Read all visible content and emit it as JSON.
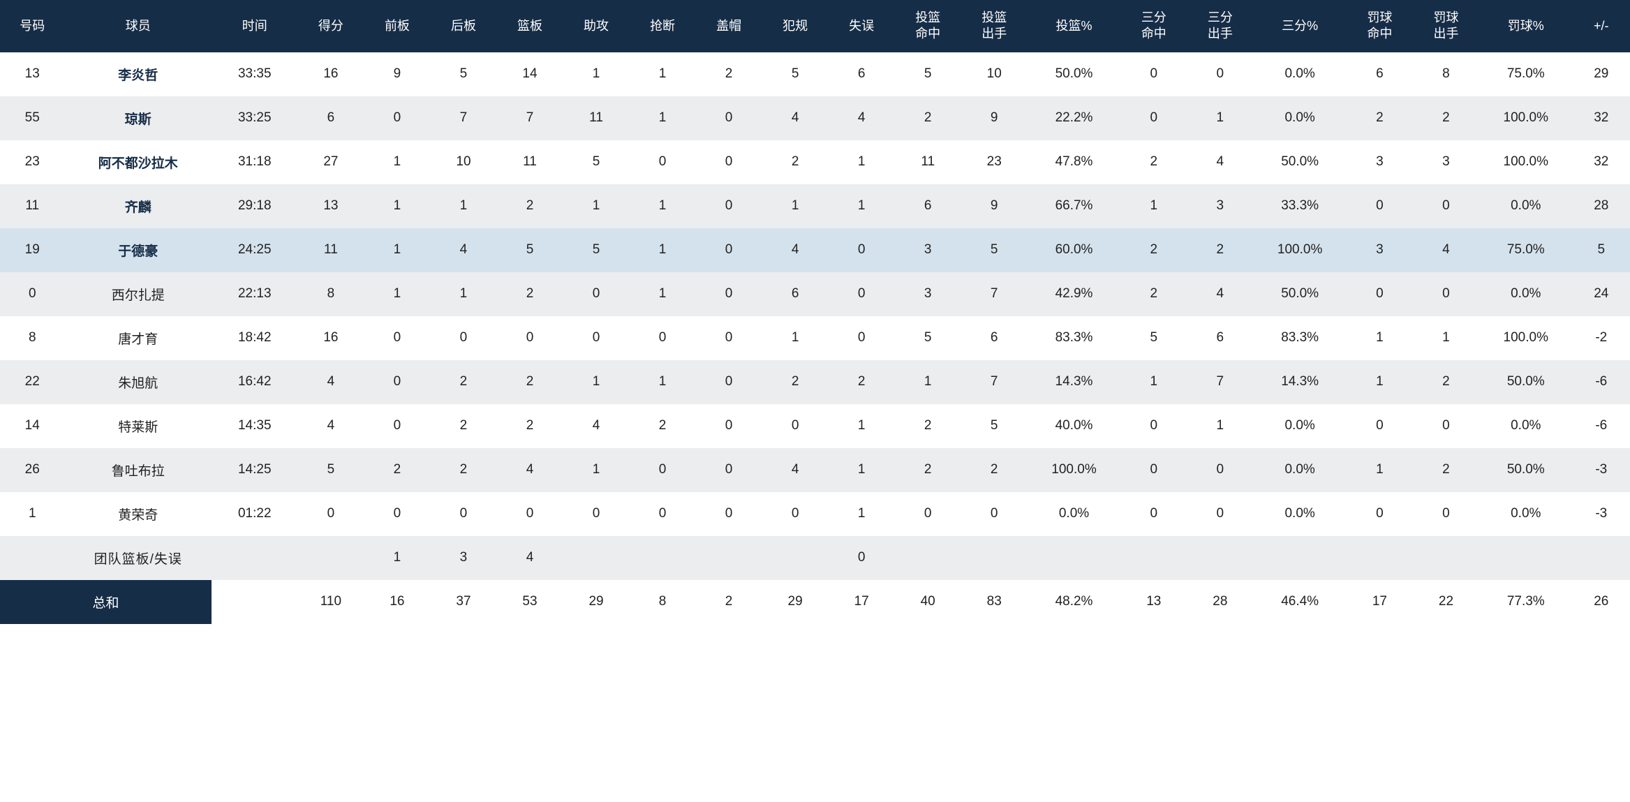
{
  "columns": [
    "号码",
    "球员",
    "时间",
    "得分",
    "前板",
    "后板",
    "篮板",
    "助攻",
    "抢断",
    "盖帽",
    "犯规",
    "失误",
    "投篮\n命中",
    "投篮\n出手",
    "投篮%",
    "三分\n命中",
    "三分\n出手",
    "三分%",
    "罚球\n命中",
    "罚球\n出手",
    "罚球%",
    "+/-"
  ],
  "rows": [
    {
      "bold": true,
      "cells": [
        "13",
        "李炎哲",
        "33:35",
        "16",
        "9",
        "5",
        "14",
        "1",
        "1",
        "2",
        "5",
        "6",
        "5",
        "10",
        "50.0%",
        "0",
        "0",
        "0.0%",
        "6",
        "8",
        "75.0%",
        "29"
      ]
    },
    {
      "bold": true,
      "cells": [
        "55",
        "琼斯",
        "33:25",
        "6",
        "0",
        "7",
        "7",
        "11",
        "1",
        "0",
        "4",
        "4",
        "2",
        "9",
        "22.2%",
        "0",
        "1",
        "0.0%",
        "2",
        "2",
        "100.0%",
        "32"
      ]
    },
    {
      "bold": true,
      "cells": [
        "23",
        "阿不都沙拉木",
        "31:18",
        "27",
        "1",
        "10",
        "11",
        "5",
        "0",
        "0",
        "2",
        "1",
        "11",
        "23",
        "47.8%",
        "2",
        "4",
        "50.0%",
        "3",
        "3",
        "100.0%",
        "32"
      ]
    },
    {
      "bold": true,
      "cells": [
        "11",
        "齐麟",
        "29:18",
        "13",
        "1",
        "1",
        "2",
        "1",
        "1",
        "0",
        "1",
        "1",
        "6",
        "9",
        "66.7%",
        "1",
        "3",
        "33.3%",
        "0",
        "0",
        "0.0%",
        "28"
      ]
    },
    {
      "bold": true,
      "hl": true,
      "cells": [
        "19",
        "于德豪",
        "24:25",
        "11",
        "1",
        "4",
        "5",
        "5",
        "1",
        "0",
        "4",
        "0",
        "3",
        "5",
        "60.0%",
        "2",
        "2",
        "100.0%",
        "3",
        "4",
        "75.0%",
        "5"
      ]
    },
    {
      "bold": false,
      "cells": [
        "0",
        "西尔扎提",
        "22:13",
        "8",
        "1",
        "1",
        "2",
        "0",
        "1",
        "0",
        "6",
        "0",
        "3",
        "7",
        "42.9%",
        "2",
        "4",
        "50.0%",
        "0",
        "0",
        "0.0%",
        "24"
      ]
    },
    {
      "bold": false,
      "cells": [
        "8",
        "唐才育",
        "18:42",
        "16",
        "0",
        "0",
        "0",
        "0",
        "0",
        "0",
        "1",
        "0",
        "5",
        "6",
        "83.3%",
        "5",
        "6",
        "83.3%",
        "1",
        "1",
        "100.0%",
        "-2"
      ]
    },
    {
      "bold": false,
      "cells": [
        "22",
        "朱旭航",
        "16:42",
        "4",
        "0",
        "2",
        "2",
        "1",
        "1",
        "0",
        "2",
        "2",
        "1",
        "7",
        "14.3%",
        "1",
        "7",
        "14.3%",
        "1",
        "2",
        "50.0%",
        "-6"
      ]
    },
    {
      "bold": false,
      "cells": [
        "14",
        "特莱斯",
        "14:35",
        "4",
        "0",
        "2",
        "2",
        "4",
        "2",
        "0",
        "0",
        "1",
        "2",
        "5",
        "40.0%",
        "0",
        "1",
        "0.0%",
        "0",
        "0",
        "0.0%",
        "-6"
      ]
    },
    {
      "bold": false,
      "cells": [
        "26",
        "鲁吐布拉",
        "14:25",
        "5",
        "2",
        "2",
        "4",
        "1",
        "0",
        "0",
        "4",
        "1",
        "2",
        "2",
        "100.0%",
        "0",
        "0",
        "0.0%",
        "1",
        "2",
        "50.0%",
        "-3"
      ]
    },
    {
      "bold": false,
      "cells": [
        "1",
        "黄荣奇",
        "01:22",
        "0",
        "0",
        "0",
        "0",
        "0",
        "0",
        "0",
        "0",
        "1",
        "0",
        "0",
        "0.0%",
        "0",
        "0",
        "0.0%",
        "0",
        "0",
        "0.0%",
        "-3"
      ]
    }
  ],
  "team_row": {
    "label": "团队篮板/失误",
    "cells": [
      "",
      "团队篮板/失误",
      "",
      "",
      "1",
      "3",
      "4",
      "",
      "",
      "",
      "",
      "0",
      "",
      "",
      "",
      "",
      "",
      "",
      "",
      "",
      "",
      ""
    ]
  },
  "total_row": {
    "label": "总和",
    "cells": [
      "总和",
      "",
      "110",
      "16",
      "37",
      "53",
      "29",
      "8",
      "2",
      "29",
      "17",
      "40",
      "83",
      "48.2%",
      "13",
      "28",
      "46.4%",
      "17",
      "22",
      "77.3%",
      "26"
    ]
  },
  "colors": {
    "header_bg": "#162d47",
    "header_fg": "#ffffff",
    "row_alt": "#ecedee",
    "row_hl": "#d4e2ed",
    "text": "#333333"
  }
}
